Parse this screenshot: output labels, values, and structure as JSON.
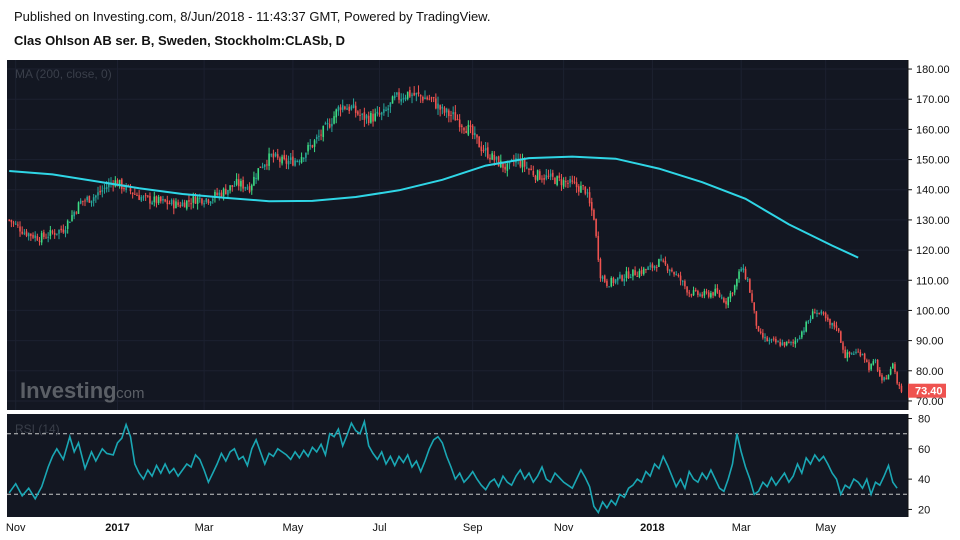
{
  "header": {
    "published": "Published on Investing.com, 8/Jun/2018 - 11:43:37 GMT, Powered by TradingView.",
    "symbol": "Clas Ohlson AB ser. B, Sweden, Stockholm:CLASb, D"
  },
  "watermark": {
    "brand": "Investing",
    "suffix": ".com"
  },
  "colors": {
    "background": "#131722",
    "up": "#26a69a",
    "up_bright": "#3ddc84",
    "down": "#ef5350",
    "ma": "#2fd6e6",
    "rsi": "#1aa7b4",
    "last_price_bg": "#ef5350"
  },
  "chart_data": [
    {
      "type": "candlestick",
      "indicator_label": "MA (200, close, 0)",
      "ylim": [
        67,
        183
      ],
      "y_ticks": [
        180.0,
        170.0,
        160.0,
        150.0,
        140.0,
        130.0,
        120.0,
        110.0,
        100.0,
        90.0,
        80.0,
        70.0
      ],
      "last_price": "73.40",
      "x_ticks": [
        {
          "label": "Nov",
          "bar": 3
        },
        {
          "label": "2017",
          "bar": 50,
          "bold": true
        },
        {
          "label": "Mar",
          "bar": 90
        },
        {
          "label": "May",
          "bar": 131
        },
        {
          "label": "Jul",
          "bar": 171
        },
        {
          "label": "Sep",
          "bar": 214
        },
        {
          "label": "Nov",
          "bar": 256
        },
        {
          "label": "2018",
          "bar": 297,
          "bold": true
        },
        {
          "label": "Mar",
          "bar": 338
        },
        {
          "label": "May",
          "bar": 377
        }
      ],
      "close_series": [
        [
          0,
          130
        ],
        [
          7,
          126
        ],
        [
          14,
          124
        ],
        [
          25,
          127
        ],
        [
          33,
          136
        ],
        [
          40,
          138
        ],
        [
          48,
          143
        ],
        [
          55,
          140
        ],
        [
          62,
          137
        ],
        [
          70,
          136
        ],
        [
          78,
          135
        ],
        [
          86,
          137
        ],
        [
          92,
          137
        ],
        [
          98,
          139
        ],
        [
          105,
          142
        ],
        [
          111,
          141
        ],
        [
          116,
          148
        ],
        [
          121,
          151
        ],
        [
          127,
          149
        ],
        [
          133,
          150
        ],
        [
          140,
          155
        ],
        [
          147,
          161
        ],
        [
          153,
          168
        ],
        [
          158,
          167
        ],
        [
          163,
          164
        ],
        [
          168,
          164
        ],
        [
          173,
          165
        ],
        [
          178,
          170
        ],
        [
          184,
          172
        ],
        [
          189,
          171
        ],
        [
          195,
          170
        ],
        [
          200,
          166
        ],
        [
          206,
          164
        ],
        [
          212,
          160
        ],
        [
          218,
          154
        ],
        [
          224,
          150
        ],
        [
          230,
          147
        ],
        [
          234,
          150
        ],
        [
          238,
          148
        ],
        [
          243,
          145
        ],
        [
          249,
          144
        ],
        [
          254,
          143
        ],
        [
          259,
          142
        ],
        [
          262,
          141
        ],
        [
          266,
          140
        ],
        [
          268,
          135
        ],
        [
          270,
          131
        ],
        [
          271,
          124
        ],
        [
          273,
          112
        ],
        [
          276,
          109
        ],
        [
          280,
          110
        ],
        [
          286,
          112
        ],
        [
          292,
          113
        ],
        [
          296,
          114
        ],
        [
          300,
          116
        ],
        [
          305,
          114
        ],
        [
          310,
          110
        ],
        [
          314,
          106
        ],
        [
          320,
          105
        ],
        [
          326,
          106
        ],
        [
          331,
          103
        ],
        [
          335,
          108
        ],
        [
          338,
          114
        ],
        [
          341,
          110
        ],
        [
          344,
          99
        ],
        [
          346,
          92
        ],
        [
          350,
          90
        ],
        [
          356,
          89
        ],
        [
          362,
          89
        ],
        [
          367,
          94
        ],
        [
          372,
          100
        ],
        [
          376,
          98
        ],
        [
          379,
          95
        ],
        [
          382,
          95
        ],
        [
          384,
          90
        ],
        [
          386,
          85
        ],
        [
          390,
          86
        ],
        [
          394,
          86
        ],
        [
          397,
          81
        ],
        [
          400,
          83
        ],
        [
          403,
          76
        ],
        [
          405,
          78
        ],
        [
          407,
          80
        ],
        [
          408,
          83
        ],
        [
          410,
          76
        ],
        [
          412,
          73.4
        ]
      ],
      "ma200": [
        [
          0,
          146.2
        ],
        [
          20,
          145.1
        ],
        [
          40,
          142.8
        ],
        [
          60,
          140.5
        ],
        [
          80,
          138.6
        ],
        [
          100,
          137.3
        ],
        [
          120,
          136.2
        ],
        [
          140,
          136.3
        ],
        [
          160,
          137.6
        ],
        [
          180,
          139.8
        ],
        [
          200,
          143.3
        ],
        [
          220,
          148.0
        ],
        [
          240,
          150.5
        ],
        [
          260,
          151.0
        ],
        [
          280,
          150.3
        ],
        [
          300,
          147.0
        ],
        [
          320,
          142.5
        ],
        [
          340,
          137.0
        ],
        [
          360,
          128.5
        ],
        [
          380,
          121.5
        ],
        [
          392,
          117.5
        ]
      ]
    },
    {
      "type": "line",
      "indicator_label": "RSI (14)",
      "ylim": [
        15,
        83
      ],
      "y_ticks": [
        80,
        60,
        40,
        20
      ],
      "levels": [
        70,
        30
      ],
      "values": [
        [
          0,
          31
        ],
        [
          3,
          37
        ],
        [
          6,
          29
        ],
        [
          9,
          34
        ],
        [
          12,
          27
        ],
        [
          15,
          35
        ],
        [
          18,
          48
        ],
        [
          20,
          55
        ],
        [
          22,
          60
        ],
        [
          25,
          53
        ],
        [
          28,
          68
        ],
        [
          30,
          58
        ],
        [
          32,
          64
        ],
        [
          35,
          47
        ],
        [
          38,
          58
        ],
        [
          40,
          52
        ],
        [
          43,
          60
        ],
        [
          45,
          57
        ],
        [
          48,
          56
        ],
        [
          50,
          64
        ],
        [
          52,
          67
        ],
        [
          54,
          76
        ],
        [
          56,
          68
        ],
        [
          58,
          50
        ],
        [
          60,
          44
        ],
        [
          62,
          40
        ],
        [
          64,
          46
        ],
        [
          66,
          42
        ],
        [
          68,
          49
        ],
        [
          70,
          44
        ],
        [
          72,
          50
        ],
        [
          74,
          44
        ],
        [
          76,
          47
        ],
        [
          78,
          42
        ],
        [
          80,
          46
        ],
        [
          82,
          50
        ],
        [
          84,
          48
        ],
        [
          86,
          56
        ],
        [
          88,
          53
        ],
        [
          90,
          46
        ],
        [
          92,
          38
        ],
        [
          94,
          44
        ],
        [
          96,
          50
        ],
        [
          98,
          57
        ],
        [
          100,
          52
        ],
        [
          102,
          58
        ],
        [
          104,
          60
        ],
        [
          106,
          53
        ],
        [
          108,
          55
        ],
        [
          110,
          49
        ],
        [
          112,
          60
        ],
        [
          114,
          66
        ],
        [
          116,
          58
        ],
        [
          118,
          50
        ],
        [
          120,
          57
        ],
        [
          122,
          55
        ],
        [
          124,
          60
        ],
        [
          126,
          58
        ],
        [
          128,
          56
        ],
        [
          130,
          53
        ],
        [
          132,
          58
        ],
        [
          134,
          54
        ],
        [
          136,
          59
        ],
        [
          138,
          55
        ],
        [
          140,
          61
        ],
        [
          142,
          58
        ],
        [
          144,
          63
        ],
        [
          146,
          56
        ],
        [
          148,
          70
        ],
        [
          150,
          68
        ],
        [
          152,
          73
        ],
        [
          154,
          62
        ],
        [
          156,
          69
        ],
        [
          158,
          77
        ],
        [
          160,
          72
        ],
        [
          162,
          70
        ],
        [
          164,
          78
        ],
        [
          166,
          62
        ],
        [
          168,
          57
        ],
        [
          170,
          53
        ],
        [
          172,
          58
        ],
        [
          174,
          50
        ],
        [
          176,
          55
        ],
        [
          178,
          49
        ],
        [
          180,
          55
        ],
        [
          182,
          51
        ],
        [
          184,
          56
        ],
        [
          186,
          48
        ],
        [
          188,
          52
        ],
        [
          190,
          45
        ],
        [
          192,
          52
        ],
        [
          194,
          60
        ],
        [
          196,
          66
        ],
        [
          198,
          68
        ],
        [
          200,
          64
        ],
        [
          202,
          55
        ],
        [
          204,
          48
        ],
        [
          206,
          40
        ],
        [
          208,
          44
        ],
        [
          210,
          38
        ],
        [
          212,
          41
        ],
        [
          214,
          45
        ],
        [
          216,
          40
        ],
        [
          218,
          36
        ],
        [
          220,
          33
        ],
        [
          222,
          38
        ],
        [
          224,
          40
        ],
        [
          226,
          35
        ],
        [
          228,
          42
        ],
        [
          230,
          38
        ],
        [
          232,
          36
        ],
        [
          234,
          42
        ],
        [
          236,
          46
        ],
        [
          238,
          40
        ],
        [
          240,
          44
        ],
        [
          242,
          38
        ],
        [
          244,
          42
        ],
        [
          246,
          48
        ],
        [
          248,
          40
        ],
        [
          250,
          38
        ],
        [
          252,
          44
        ],
        [
          254,
          41
        ],
        [
          256,
          38
        ],
        [
          258,
          36
        ],
        [
          260,
          34
        ],
        [
          262,
          40
        ],
        [
          264,
          46
        ],
        [
          266,
          41
        ],
        [
          268,
          35
        ],
        [
          270,
          22
        ],
        [
          272,
          18
        ],
        [
          274,
          25
        ],
        [
          276,
          21
        ],
        [
          278,
          26
        ],
        [
          280,
          23
        ],
        [
          282,
          30
        ],
        [
          284,
          28
        ],
        [
          286,
          34
        ],
        [
          288,
          36
        ],
        [
          290,
          40
        ],
        [
          292,
          38
        ],
        [
          294,
          45
        ],
        [
          296,
          42
        ],
        [
          298,
          50
        ],
        [
          300,
          47
        ],
        [
          302,
          55
        ],
        [
          304,
          49
        ],
        [
          306,
          42
        ],
        [
          308,
          35
        ],
        [
          310,
          40
        ],
        [
          312,
          34
        ],
        [
          314,
          45
        ],
        [
          316,
          40
        ],
        [
          318,
          38
        ],
        [
          320,
          44
        ],
        [
          322,
          40
        ],
        [
          324,
          46
        ],
        [
          326,
          40
        ],
        [
          328,
          34
        ],
        [
          330,
          32
        ],
        [
          332,
          40
        ],
        [
          334,
          50
        ],
        [
          336,
          70
        ],
        [
          338,
          58
        ],
        [
          340,
          48
        ],
        [
          342,
          40
        ],
        [
          344,
          30
        ],
        [
          346,
          32
        ],
        [
          348,
          38
        ],
        [
          350,
          35
        ],
        [
          352,
          41
        ],
        [
          354,
          36
        ],
        [
          356,
          40
        ],
        [
          358,
          44
        ],
        [
          360,
          38
        ],
        [
          362,
          42
        ],
        [
          364,
          50
        ],
        [
          366,
          44
        ],
        [
          368,
          54
        ],
        [
          370,
          50
        ],
        [
          372,
          56
        ],
        [
          374,
          52
        ],
        [
          376,
          55
        ],
        [
          378,
          50
        ],
        [
          380,
          44
        ],
        [
          382,
          40
        ],
        [
          384,
          30
        ],
        [
          386,
          36
        ],
        [
          388,
          34
        ],
        [
          390,
          40
        ],
        [
          392,
          38
        ],
        [
          394,
          34
        ],
        [
          396,
          40
        ],
        [
          398,
          30
        ],
        [
          400,
          38
        ],
        [
          402,
          36
        ],
        [
          404,
          42
        ],
        [
          406,
          49
        ],
        [
          408,
          38
        ],
        [
          410,
          34
        ]
      ]
    }
  ]
}
